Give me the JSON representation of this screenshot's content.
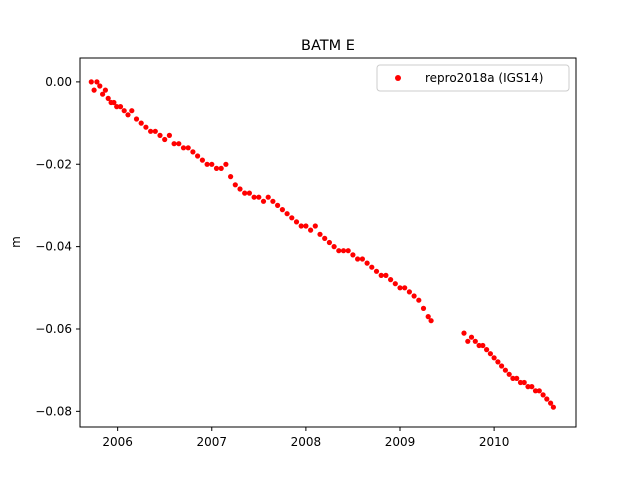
{
  "chart_data": {
    "type": "scatter",
    "title": "BATM E",
    "xlabel": "",
    "ylabel": "m",
    "x_unit": "year",
    "xlim": [
      2005.6,
      2010.87
    ],
    "ylim": [
      -0.0838,
      0.0058
    ],
    "x_ticks": [
      2006,
      2007,
      2008,
      2009,
      2010
    ],
    "x_tick_labels": [
      "2006",
      "2007",
      "2008",
      "2009",
      "2010"
    ],
    "y_ticks": [
      0.0,
      -0.02,
      -0.04,
      -0.06,
      -0.08
    ],
    "y_tick_labels": [
      "0.00",
      "−0.02",
      "−0.04",
      "−0.06",
      "−0.08"
    ],
    "grid": false,
    "legend_position": "top-right",
    "series": [
      {
        "name": "repro2018a (IGS14)",
        "color": "#ff0000",
        "marker": "circle",
        "points": [
          [
            2005.72,
            0.0
          ],
          [
            2005.75,
            -0.002
          ],
          [
            2005.78,
            0.0
          ],
          [
            2005.81,
            -0.001
          ],
          [
            2005.84,
            -0.003
          ],
          [
            2005.87,
            -0.002
          ],
          [
            2005.9,
            -0.004
          ],
          [
            2005.93,
            -0.005
          ],
          [
            2005.96,
            -0.005
          ],
          [
            2005.99,
            -0.006
          ],
          [
            2006.03,
            -0.006
          ],
          [
            2006.07,
            -0.007
          ],
          [
            2006.11,
            -0.008
          ],
          [
            2006.15,
            -0.007
          ],
          [
            2006.2,
            -0.009
          ],
          [
            2006.25,
            -0.01
          ],
          [
            2006.3,
            -0.011
          ],
          [
            2006.35,
            -0.012
          ],
          [
            2006.4,
            -0.012
          ],
          [
            2006.45,
            -0.013
          ],
          [
            2006.5,
            -0.014
          ],
          [
            2006.55,
            -0.013
          ],
          [
            2006.6,
            -0.015
          ],
          [
            2006.65,
            -0.015
          ],
          [
            2006.7,
            -0.016
          ],
          [
            2006.75,
            -0.016
          ],
          [
            2006.8,
            -0.017
          ],
          [
            2006.85,
            -0.018
          ],
          [
            2006.9,
            -0.019
          ],
          [
            2006.95,
            -0.02
          ],
          [
            2007.0,
            -0.02
          ],
          [
            2007.05,
            -0.021
          ],
          [
            2007.1,
            -0.021
          ],
          [
            2007.15,
            -0.02
          ],
          [
            2007.2,
            -0.023
          ],
          [
            2007.25,
            -0.025
          ],
          [
            2007.3,
            -0.026
          ],
          [
            2007.35,
            -0.027
          ],
          [
            2007.4,
            -0.027
          ],
          [
            2007.45,
            -0.028
          ],
          [
            2007.5,
            -0.028
          ],
          [
            2007.55,
            -0.029
          ],
          [
            2007.6,
            -0.028
          ],
          [
            2007.65,
            -0.029
          ],
          [
            2007.7,
            -0.03
          ],
          [
            2007.75,
            -0.031
          ],
          [
            2007.8,
            -0.032
          ],
          [
            2007.85,
            -0.033
          ],
          [
            2007.9,
            -0.034
          ],
          [
            2007.95,
            -0.035
          ],
          [
            2008.0,
            -0.035
          ],
          [
            2008.05,
            -0.036
          ],
          [
            2008.1,
            -0.035
          ],
          [
            2008.15,
            -0.037
          ],
          [
            2008.2,
            -0.038
          ],
          [
            2008.25,
            -0.039
          ],
          [
            2008.3,
            -0.04
          ],
          [
            2008.35,
            -0.041
          ],
          [
            2008.4,
            -0.041
          ],
          [
            2008.45,
            -0.041
          ],
          [
            2008.5,
            -0.042
          ],
          [
            2008.55,
            -0.043
          ],
          [
            2008.6,
            -0.043
          ],
          [
            2008.65,
            -0.044
          ],
          [
            2008.7,
            -0.045
          ],
          [
            2008.75,
            -0.046
          ],
          [
            2008.8,
            -0.047
          ],
          [
            2008.85,
            -0.047
          ],
          [
            2008.9,
            -0.048
          ],
          [
            2008.95,
            -0.049
          ],
          [
            2009.0,
            -0.05
          ],
          [
            2009.05,
            -0.05
          ],
          [
            2009.1,
            -0.051
          ],
          [
            2009.15,
            -0.052
          ],
          [
            2009.2,
            -0.053
          ],
          [
            2009.25,
            -0.055
          ],
          [
            2009.3,
            -0.057
          ],
          [
            2009.33,
            -0.058
          ],
          [
            2009.68,
            -0.061
          ],
          [
            2009.72,
            -0.063
          ],
          [
            2009.76,
            -0.062
          ],
          [
            2009.8,
            -0.063
          ],
          [
            2009.84,
            -0.064
          ],
          [
            2009.88,
            -0.064
          ],
          [
            2009.92,
            -0.065
          ],
          [
            2009.96,
            -0.066
          ],
          [
            2010.0,
            -0.067
          ],
          [
            2010.04,
            -0.068
          ],
          [
            2010.08,
            -0.069
          ],
          [
            2010.12,
            -0.07
          ],
          [
            2010.16,
            -0.071
          ],
          [
            2010.2,
            -0.072
          ],
          [
            2010.24,
            -0.072
          ],
          [
            2010.28,
            -0.073
          ],
          [
            2010.32,
            -0.073
          ],
          [
            2010.36,
            -0.074
          ],
          [
            2010.4,
            -0.074
          ],
          [
            2010.44,
            -0.075
          ],
          [
            2010.48,
            -0.075
          ],
          [
            2010.52,
            -0.076
          ],
          [
            2010.56,
            -0.077
          ],
          [
            2010.6,
            -0.078
          ],
          [
            2010.63,
            -0.079
          ]
        ]
      }
    ]
  }
}
